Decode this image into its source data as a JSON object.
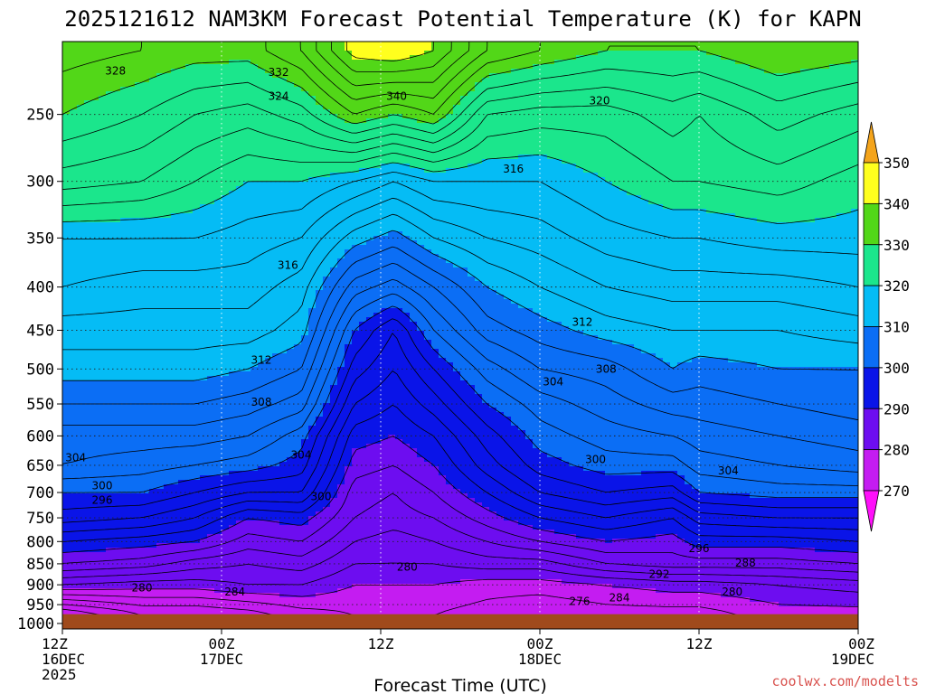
{
  "chart_data": {
    "type": "heatmap",
    "title": "2025121612 NAM3KM Forecast Potential Temperature (K) for KAPN",
    "xlabel": "Forecast Time (UTC)",
    "ylabel": "",
    "credit": "coolwx.com/modelts",
    "x_ticks": [
      {
        "hour": 0,
        "lines": [
          "12Z",
          "16DEC",
          "2025"
        ]
      },
      {
        "hour": 12,
        "lines": [
          "00Z",
          "17DEC"
        ]
      },
      {
        "hour": 24,
        "lines": [
          "12Z"
        ]
      },
      {
        "hour": 36,
        "lines": [
          "00Z",
          "18DEC"
        ]
      },
      {
        "hour": 48,
        "lines": [
          "12Z"
        ]
      },
      {
        "hour": 60,
        "lines": [
          "00Z",
          "19DEC"
        ]
      }
    ],
    "xlim_hours": [
      0,
      60
    ],
    "y_scale": "log",
    "ylim_hpa": [
      1015,
      205
    ],
    "y_ticks": [
      250,
      300,
      350,
      400,
      450,
      500,
      550,
      600,
      650,
      700,
      750,
      800,
      850,
      900,
      950,
      1000
    ],
    "grid": true,
    "colorbar": {
      "placement": "right",
      "labels": [
        350,
        340,
        330,
        320,
        310,
        300,
        290,
        280,
        270
      ],
      "bands": [
        {
          "min": 350,
          "max": 360,
          "color": "#f4a41b"
        },
        {
          "min": 340,
          "max": 350,
          "color": "#ffff1e"
        },
        {
          "min": 330,
          "max": 340,
          "color": "#52d718"
        },
        {
          "min": 320,
          "max": 330,
          "color": "#1be68c"
        },
        {
          "min": 310,
          "max": 320,
          "color": "#05bcf5"
        },
        {
          "min": 300,
          "max": 310,
          "color": "#0b6ef5"
        },
        {
          "min": 290,
          "max": 300,
          "color": "#0a14e8"
        },
        {
          "min": 280,
          "max": 290,
          "color": "#6d0df0"
        },
        {
          "min": 270,
          "max": 280,
          "color": "#c41cf1"
        },
        {
          "min": 260,
          "max": 270,
          "color": "#ff0ffa"
        }
      ]
    },
    "contour_interval": 2,
    "ground_color": "#a04a1c",
    "ground_top_hpa": 975,
    "theta_profiles": [
      {
        "hour": 0,
        "p": [
          975,
          900,
          850,
          800,
          750,
          700,
          650,
          600,
          550,
          500,
          450,
          400,
          350,
          300,
          250,
          210
        ],
        "theta": [
          270,
          282,
          288,
          292,
          297,
          300,
          304,
          305,
          308,
          311,
          313,
          316,
          318,
          325,
          330,
          333
        ]
      },
      {
        "hour": 6,
        "p": [
          975,
          900,
          850,
          800,
          750,
          700,
          650,
          600,
          550,
          500,
          450,
          400,
          350,
          300,
          250,
          210
        ],
        "theta": [
          274,
          281,
          287,
          291,
          296,
          300,
          303,
          305,
          308,
          311,
          313,
          315,
          318,
          324,
          328,
          332
        ]
      },
      {
        "hour": 10,
        "p": [
          975,
          900,
          850,
          800,
          750,
          700,
          650,
          600,
          550,
          500,
          450,
          400,
          350,
          300,
          250,
          210
        ],
        "theta": [
          274,
          281,
          285,
          290,
          294,
          298,
          302,
          305,
          308,
          311,
          313,
          315,
          318,
          322,
          326,
          331
        ]
      },
      {
        "hour": 14,
        "p": [
          975,
          900,
          850,
          800,
          750,
          700,
          650,
          600,
          550,
          500,
          450,
          400,
          350,
          300,
          250,
          210
        ],
        "theta": [
          275,
          282,
          284,
          287,
          290,
          296,
          301,
          304,
          307,
          310,
          313,
          315,
          317,
          320,
          325,
          331
        ]
      },
      {
        "hour": 18,
        "p": [
          975,
          900,
          850,
          800,
          750,
          700,
          650,
          600,
          550,
          500,
          450,
          400,
          350,
          300,
          250,
          210
        ],
        "theta": [
          277,
          282,
          285,
          288,
          291,
          296,
          299,
          301,
          305,
          308,
          311,
          313,
          316,
          320,
          327,
          334
        ]
      },
      {
        "hour": 22,
        "p": [
          975,
          900,
          850,
          800,
          750,
          700,
          650,
          600,
          550,
          500,
          450,
          400,
          350,
          300,
          250,
          210
        ],
        "theta": [
          278,
          280,
          282,
          284,
          286,
          287,
          289,
          291,
          294,
          297,
          300,
          305,
          311,
          318,
          332,
          341
        ]
      },
      {
        "hour": 25,
        "p": [
          975,
          900,
          850,
          800,
          750,
          700,
          650,
          600,
          550,
          500,
          450,
          400,
          350,
          300,
          250,
          210
        ],
        "theta": [
          278,
          280,
          282,
          283,
          285,
          286,
          288,
          290,
          292,
          294,
          296,
          303,
          309,
          316,
          330,
          342
        ]
      },
      {
        "hour": 28,
        "p": [
          975,
          900,
          850,
          800,
          750,
          700,
          650,
          600,
          550,
          500,
          450,
          400,
          350,
          300,
          250,
          210
        ],
        "theta": [
          278,
          280,
          282,
          284,
          286,
          288,
          290,
          292,
          295,
          298,
          302,
          306,
          312,
          318,
          332,
          340
        ]
      },
      {
        "hour": 32,
        "p": [
          975,
          900,
          850,
          800,
          750,
          700,
          650,
          600,
          550,
          500,
          450,
          400,
          350,
          300,
          250,
          210
        ],
        "theta": [
          277,
          279,
          283,
          286,
          289,
          292,
          295,
          297,
          300,
          303,
          307,
          310,
          314,
          318,
          324,
          334
        ]
      },
      {
        "hour": 36,
        "p": [
          975,
          900,
          850,
          800,
          750,
          700,
          650,
          600,
          550,
          500,
          450,
          400,
          350,
          300,
          250,
          210
        ],
        "theta": [
          276,
          279,
          283,
          288,
          292,
          296,
          299,
          301,
          303,
          306,
          309,
          312,
          315,
          318,
          323,
          332
        ]
      },
      {
        "hour": 41,
        "p": [
          975,
          900,
          850,
          800,
          750,
          700,
          650,
          600,
          550,
          500,
          450,
          400,
          350,
          300,
          250,
          210
        ],
        "theta": [
          277,
          280,
          286,
          290,
          294,
          298,
          301,
          303,
          305,
          307,
          311,
          314,
          317,
          320,
          323,
          330
        ]
      },
      {
        "hour": 46,
        "p": [
          975,
          900,
          850,
          800,
          750,
          700,
          650,
          600,
          550,
          500,
          450,
          400,
          350,
          300,
          250,
          210
        ],
        "theta": [
          277,
          281,
          287,
          289,
          292,
          297,
          301,
          304,
          307,
          310,
          312,
          315,
          318,
          322,
          325,
          330
        ]
      },
      {
        "hour": 48,
        "p": [
          975,
          900,
          850,
          800,
          750,
          700,
          650,
          600,
          550,
          500,
          450,
          400,
          350,
          300,
          250,
          210
        ],
        "theta": [
          277,
          281,
          287,
          291,
          295,
          300,
          303,
          305,
          307,
          309,
          312,
          315,
          318,
          322,
          324,
          330
        ]
      },
      {
        "hour": 54,
        "p": [
          975,
          900,
          850,
          800,
          750,
          700,
          650,
          600,
          550,
          500,
          450,
          400,
          350,
          300,
          250,
          210
        ],
        "theta": [
          279,
          282,
          287,
          291,
          296,
          301,
          304,
          306,
          308,
          310,
          312,
          315,
          319,
          323,
          327,
          332
        ]
      },
      {
        "hour": 60,
        "p": [
          975,
          900,
          850,
          800,
          750,
          700,
          650,
          600,
          550,
          500,
          450,
          400,
          350,
          300,
          250,
          210
        ],
        "theta": [
          279,
          283,
          288,
          292,
          296,
          301,
          305,
          307,
          309,
          310,
          313,
          316,
          319,
          321,
          325,
          331
        ]
      }
    ],
    "contour_labels": [
      {
        "text": "328",
        "hour": 4,
        "p": 222
      },
      {
        "text": "332",
        "hour": 16.3,
        "p": 223
      },
      {
        "text": "324",
        "hour": 16.3,
        "p": 238
      },
      {
        "text": "340",
        "hour": 25.2,
        "p": 238
      },
      {
        "text": "320",
        "hour": 40.5,
        "p": 241
      },
      {
        "text": "316",
        "hour": 34,
        "p": 290
      },
      {
        "text": "316",
        "hour": 17,
        "p": 377
      },
      {
        "text": "312",
        "hour": 39.2,
        "p": 440
      },
      {
        "text": "312",
        "hour": 15,
        "p": 488
      },
      {
        "text": "308",
        "hour": 41,
        "p": 500
      },
      {
        "text": "304",
        "hour": 37,
        "p": 518
      },
      {
        "text": "308",
        "hour": 15,
        "p": 547
      },
      {
        "text": "304",
        "hour": 18,
        "p": 632
      },
      {
        "text": "304",
        "hour": 1,
        "p": 637
      },
      {
        "text": "300",
        "hour": 40.2,
        "p": 640
      },
      {
        "text": "304",
        "hour": 50.2,
        "p": 660
      },
      {
        "text": "300",
        "hour": 3,
        "p": 687
      },
      {
        "text": "300",
        "hour": 19.5,
        "p": 708
      },
      {
        "text": "296",
        "hour": 3,
        "p": 715
      },
      {
        "text": "296",
        "hour": 48,
        "p": 815
      },
      {
        "text": "288",
        "hour": 51.5,
        "p": 848
      },
      {
        "text": "280",
        "hour": 26,
        "p": 858
      },
      {
        "text": "292",
        "hour": 45,
        "p": 875
      },
      {
        "text": "280",
        "hour": 6,
        "p": 908
      },
      {
        "text": "284",
        "hour": 13,
        "p": 918
      },
      {
        "text": "280",
        "hour": 50.5,
        "p": 918
      },
      {
        "text": "284",
        "hour": 42,
        "p": 932
      },
      {
        "text": "276",
        "hour": 39,
        "p": 942
      }
    ]
  }
}
